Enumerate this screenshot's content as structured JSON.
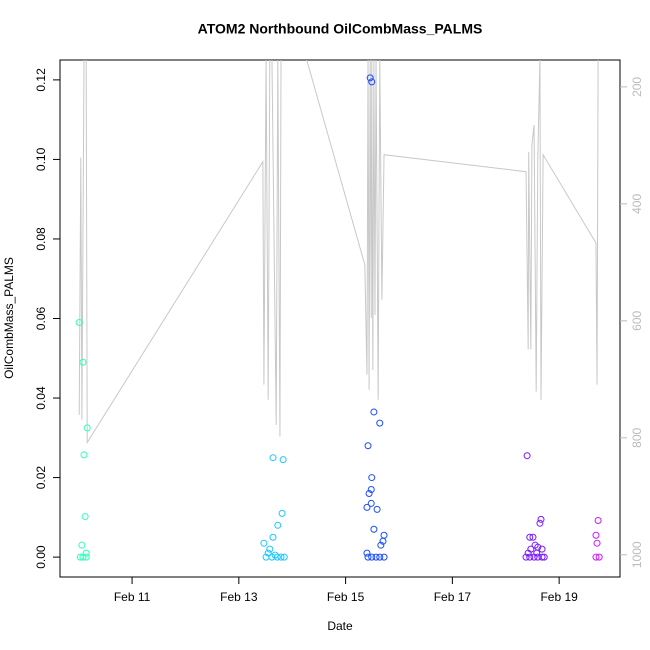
{
  "chart_data": {
    "type": "scatter",
    "title": "ATOM2 Northbound OilCombMass_PALMS",
    "x_label": "Date",
    "y_label": "OilCombMass_PALMS",
    "xlim": [
      9.65,
      20.14
    ],
    "xticks": [
      {
        "value": 11,
        "label": "Feb 11"
      },
      {
        "value": 13,
        "label": "Feb 13"
      },
      {
        "value": 15,
        "label": "Feb 15"
      },
      {
        "value": 17,
        "label": "Feb 17"
      },
      {
        "value": 19,
        "label": "Feb 19"
      }
    ],
    "ylim": [
      -0.005,
      0.125
    ],
    "yticks": [
      {
        "value": 0,
        "label": "0.00"
      },
      0.02,
      0.04,
      0.06,
      0.08,
      {
        "value": 0.1,
        "label": "0.10"
      },
      0.12
    ],
    "y2lim": [
      1038,
      154
    ],
    "y2ticks": [
      200,
      400,
      600,
      800,
      1000
    ],
    "series": [
      {
        "type": "line",
        "axis": "y2",
        "color": "#c8c8c8",
        "x": [
          10.01,
          10.04,
          10.06,
          10.1,
          10.14,
          10.16,
          13.45,
          13.47,
          13.51,
          13.55,
          13.58,
          13.62,
          13.7,
          13.73,
          13.77,
          13.79,
          14.26,
          15.36,
          15.4,
          15.42,
          15.44,
          15.46,
          15.48,
          15.49,
          15.51,
          15.53,
          15.55,
          15.57,
          15.61,
          15.64,
          15.68,
          15.72,
          18.38,
          18.42,
          18.43,
          18.47,
          18.49,
          18.53,
          18.57,
          18.6,
          18.64,
          18.66,
          18.7,
          19.69,
          19.71,
          19.73
        ],
        "values": [
          761,
          321,
          769,
          150,
          150,
          808,
          328,
          709,
          150,
          735,
          150,
          150,
          778,
          150,
          798,
          150,
          150,
          504,
          692,
          150,
          718,
          150,
          595,
          150,
          684,
          150,
          590,
          150,
          735,
          150,
          564,
          316,
          345,
          649,
          311,
          649,
          299,
          265,
          721,
          325,
          150,
          735,
          316,
          467,
          709,
          150
        ]
      },
      {
        "color": "#2effb8",
        "x": [
          10.01,
          10.08,
          10.16,
          10.1,
          10.12,
          10.06,
          10.14,
          10.03,
          10.08,
          10.14
        ],
        "values": [
          0.059,
          0.049,
          0.0325,
          0.0257,
          0.0102,
          0.003,
          0.001,
          0,
          0,
          0
        ]
      },
      {
        "color": "#1ac8ff",
        "x": [
          13.64,
          13.83,
          13.81,
          13.73,
          13.64,
          13.47,
          13.58,
          13.55,
          13.68,
          13.51,
          13.62,
          13.72,
          13.79,
          13.85
        ],
        "values": [
          0.025,
          0.0245,
          0.011,
          0.008,
          0.005,
          0.0035,
          0.002,
          0.001,
          0.0005,
          0,
          0,
          0,
          0,
          0
        ]
      },
      {
        "color": "#1a4dff",
        "x": [
          15.46,
          15.49,
          15.53,
          15.64,
          15.42,
          15.49,
          15.48,
          15.44,
          15.48,
          15.4,
          15.59,
          15.53,
          15.72,
          15.7,
          15.66,
          15.4,
          15.42,
          15.49,
          15.57,
          15.64,
          15.72
        ],
        "values": [
          0.1205,
          0.1195,
          0.0365,
          0.0337,
          0.028,
          0.02,
          0.017,
          0.016,
          0.0135,
          0.0125,
          0.012,
          0.007,
          0.0055,
          0.004,
          0.003,
          0.001,
          0,
          0,
          0,
          0,
          0
        ]
      },
      {
        "color": "#7a1aff",
        "x": [
          18.4,
          18.66,
          18.64,
          18.45,
          18.51,
          18.55,
          18.6,
          18.68,
          18.47,
          18.42,
          18.58,
          18.38,
          18.45,
          18.53,
          18.6,
          18.68,
          18.72
        ],
        "values": [
          0.0255,
          0.0095,
          0.0085,
          0.005,
          0.005,
          0.003,
          0.0025,
          0.002,
          0.002,
          0.001,
          0.001,
          0,
          0,
          0,
          0,
          0,
          0
        ]
      },
      {
        "color": "#d21aff",
        "x": [
          19.73,
          19.69,
          19.71,
          19.69,
          19.75
        ],
        "values": [
          0.0092,
          0.0055,
          0.0035,
          0,
          0
        ]
      }
    ]
  }
}
